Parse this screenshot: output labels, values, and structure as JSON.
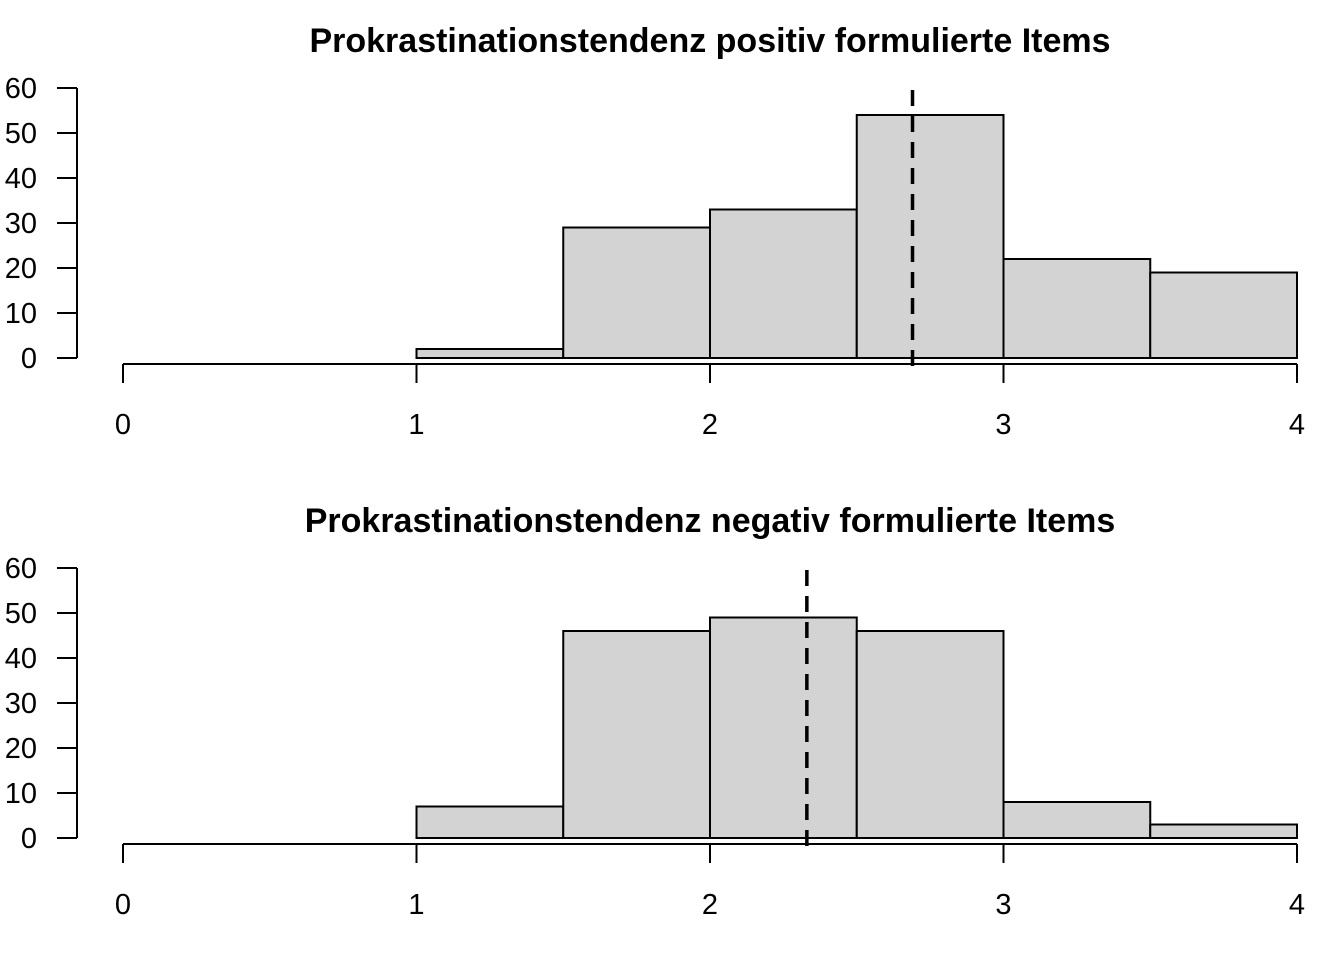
{
  "chart_data": [
    {
      "type": "bar",
      "title": "Prokrastinationstendenz positiv formulierte Items",
      "bin_edges": [
        1.0,
        1.5,
        2.0,
        2.5,
        3.0,
        3.5,
        4.0
      ],
      "values": [
        2,
        29,
        33,
        54,
        22,
        19
      ],
      "xlim": [
        0,
        4
      ],
      "ylim": [
        0,
        60
      ],
      "x_ticks": [
        "0",
        "1",
        "2",
        "3",
        "4"
      ],
      "y_ticks": [
        "0",
        "10",
        "20",
        "30",
        "40",
        "50",
        "60"
      ],
      "mean_line": 2.69,
      "bar_color": "#d3d3d3",
      "grid": false
    },
    {
      "type": "bar",
      "title": "Prokrastinationstendenz negativ formulierte Items",
      "bin_edges": [
        1.0,
        1.5,
        2.0,
        2.5,
        3.0,
        3.5,
        4.0
      ],
      "values": [
        7,
        46,
        49,
        46,
        8,
        3
      ],
      "xlim": [
        0,
        4
      ],
      "ylim": [
        0,
        60
      ],
      "x_ticks": [
        "0",
        "1",
        "2",
        "3",
        "4"
      ],
      "y_ticks": [
        "0",
        "10",
        "20",
        "30",
        "40",
        "50",
        "60"
      ],
      "mean_line": 2.33,
      "bar_color": "#d3d3d3",
      "grid": false
    }
  ]
}
